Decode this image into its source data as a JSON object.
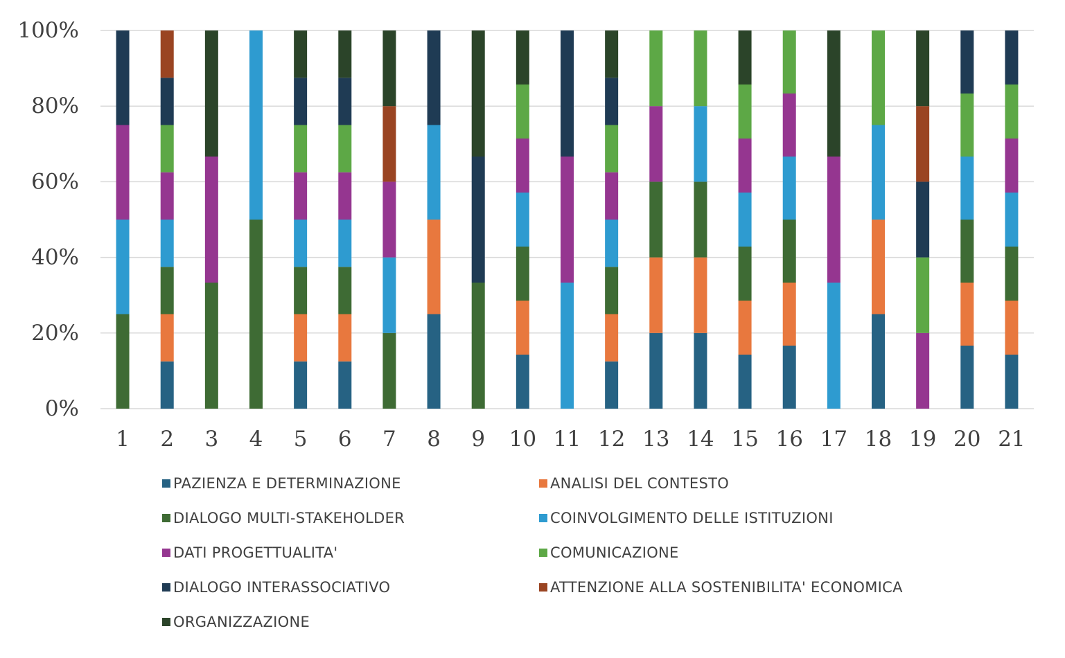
{
  "chart_data": {
    "type": "bar",
    "stacked": "percent",
    "title": "",
    "xlabel": "",
    "ylabel": "",
    "ylim": [
      0,
      100
    ],
    "y_ticks": [
      "0%",
      "20%",
      "40%",
      "60%",
      "80%",
      "100%"
    ],
    "grid": true,
    "legend_position": "bottom",
    "categories": [
      "1",
      "2",
      "3",
      "4",
      "5",
      "6",
      "7",
      "8",
      "9",
      "10",
      "11",
      "12",
      "13",
      "14",
      "15",
      "16",
      "17",
      "18",
      "19",
      "20",
      "21"
    ],
    "series": [
      {
        "name": "PAZIENZA E DETERMINAZIONE",
        "color": "#266283",
        "values": [
          0,
          1,
          0,
          0,
          1,
          1,
          0,
          1,
          0,
          1,
          0,
          1,
          1,
          1,
          1,
          1,
          0,
          1,
          0,
          1,
          1
        ]
      },
      {
        "name": "ANALISI DEL CONTESTO",
        "color": "#E8783E",
        "values": [
          0,
          1,
          0,
          0,
          1,
          1,
          0,
          1,
          0,
          1,
          0,
          1,
          1,
          1,
          1,
          1,
          0,
          1,
          0,
          1,
          1
        ]
      },
      {
        "name": "DIALOGO MULTI-STAKEHOLDER",
        "color": "#3E6B34",
        "values": [
          1,
          1,
          1,
          1,
          1,
          1,
          1,
          0,
          1,
          1,
          0,
          1,
          1,
          1,
          1,
          1,
          0,
          0,
          0,
          1,
          1
        ]
      },
      {
        "name": "COINVOLGIMENTO DELLE ISTITUZIONI",
        "color": "#2E9BD0",
        "values": [
          1,
          1,
          0,
          1,
          1,
          1,
          1,
          1,
          0,
          1,
          1,
          1,
          0,
          1,
          1,
          1,
          1,
          1,
          0,
          1,
          1
        ]
      },
      {
        "name": "DATI PROGETTUALITA'",
        "color": "#953690",
        "values": [
          1,
          1,
          1,
          0,
          1,
          1,
          1,
          0,
          0,
          1,
          1,
          1,
          1,
          0,
          1,
          1,
          1,
          0,
          1,
          0,
          1
        ]
      },
      {
        "name": "COMUNICAZIONE",
        "color": "#5DA846",
        "values": [
          0,
          1,
          0,
          0,
          1,
          1,
          0,
          0,
          0,
          1,
          0,
          1,
          1,
          1,
          1,
          1,
          0,
          1,
          1,
          1,
          1
        ]
      },
      {
        "name": "DIALOGO INTERASSOCIATIVO",
        "color": "#1F3B54",
        "values": [
          1,
          1,
          0,
          0,
          1,
          1,
          0,
          1,
          1,
          0,
          1,
          1,
          0,
          0,
          0,
          0,
          0,
          0,
          1,
          1,
          1
        ]
      },
      {
        "name": "ATTENZIONE ALLA SOSTENIBILITA' ECONOMICA",
        "color": "#9A4422",
        "values": [
          0,
          1,
          0,
          0,
          0,
          0,
          1,
          0,
          0,
          0,
          0,
          0,
          0,
          0,
          0,
          0,
          0,
          0,
          1,
          0,
          0
        ]
      },
      {
        "name": "ORGANIZZAZIONE",
        "color": "#2B4429",
        "values": [
          0,
          0,
          1,
          0,
          1,
          1,
          1,
          0,
          1,
          1,
          0,
          1,
          0,
          0,
          1,
          0,
          1,
          0,
          1,
          0,
          0
        ]
      }
    ]
  }
}
